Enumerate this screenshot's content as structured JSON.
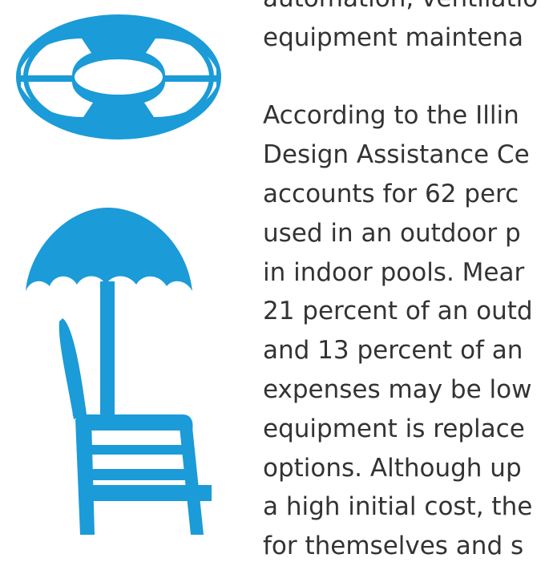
{
  "colors": {
    "icon_blue": "#1b9bd7",
    "text": "#333333"
  },
  "icons": [
    "lifebuoy-icon",
    "umbrella-chair-icon"
  ],
  "paragraphs": [
    {
      "lines": [
        "automation, ventilatio",
        "equipment maintena"
      ]
    },
    {
      "lines": [
        "According to the Illin",
        "Design Assistance Ce",
        "accounts for 62 perc",
        "used in an outdoor p",
        "in indoor pools. Mear",
        "21 percent of an outd",
        "and 13 percent of an",
        "expenses may be low",
        "equipment is replace",
        "options. Although up",
        "a high initial cost, the",
        "for themselves and s"
      ]
    }
  ]
}
